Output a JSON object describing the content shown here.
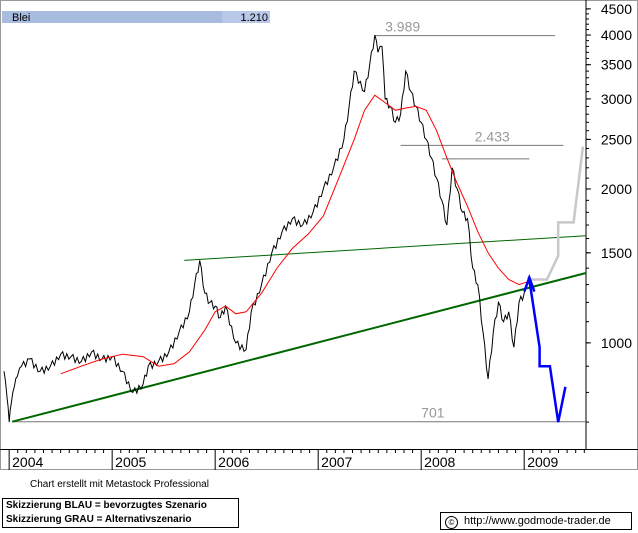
{
  "header": {
    "symbol": "Blei",
    "last_value": "1.210"
  },
  "footer": {
    "credit": "Chart erstellt mit Metastock Professional",
    "legend_blue": "Skizzierung BLAU = bevorzugtes Szenario",
    "legend_grey": "Skizzierung GRAU = Alternativszenario",
    "url": "http://www.godmode-trader.de",
    "copyright_symbol": "©"
  },
  "chart_data": {
    "type": "line",
    "title": "Blei",
    "y_scale": "log",
    "ylim": [
      620,
      4600
    ],
    "y_ticks": [
      1000,
      1500,
      2000,
      2500,
      3000,
      3500,
      4000,
      4500
    ],
    "y_tick_labels": [
      "1000",
      "1500",
      "2000",
      "2500",
      "3000",
      "3500",
      "4000",
      "4500"
    ],
    "x_ticks": [
      "2004",
      "2005",
      "2006",
      "2007",
      "2008",
      "2009"
    ],
    "xlim": [
      2003.95,
      2009.6
    ],
    "grid": false,
    "colors": {
      "price": "#000000",
      "moving_average": "#ff0000",
      "trendline": "#006600",
      "blue_scenario": "#0000ff",
      "grey_scenario": "#c8c8c8",
      "levels": "#808080"
    },
    "series": [
      {
        "x": [
          2003.95,
          2003.98,
          2004.0,
          2004.02,
          2004.05,
          2004.08,
          2004.12,
          2004.2,
          2004.3,
          2004.4,
          2004.5,
          2004.6,
          2004.7,
          2004.8,
          2004.9,
          2005.0,
          2005.1,
          2005.2,
          2005.3,
          2005.35,
          2005.45,
          2005.55,
          2005.65,
          2005.75,
          2005.8,
          2005.85,
          2005.9,
          2005.95,
          2006.0,
          2006.05,
          2006.1,
          2006.2,
          2006.3,
          2006.35,
          2006.45,
          2006.55,
          2006.65,
          2006.75,
          2006.85,
          2006.95,
          2007.05,
          2007.15,
          2007.25,
          2007.3,
          2007.35,
          2007.45,
          2007.5,
          2007.55,
          2007.58,
          2007.62,
          2007.65,
          2007.7,
          2007.75,
          2007.8,
          2007.85,
          2007.9,
          2007.95,
          2008.0,
          2008.05,
          2008.1,
          2008.15,
          2008.2,
          2008.25,
          2008.3,
          2008.35,
          2008.4,
          2008.45,
          2008.5,
          2008.55,
          2008.6,
          2008.65,
          2008.7,
          2008.75,
          2008.8,
          2008.85,
          2008.9,
          2008.95,
          2009.0,
          2009.03,
          2009.05
        ],
        "values": [
          880,
          780,
          700,
          760,
          820,
          860,
          900,
          930,
          880,
          900,
          950,
          940,
          920,
          960,
          930,
          940,
          880,
          800,
          830,
          900,
          920,
          960,
          1050,
          1150,
          1300,
          1450,
          1250,
          1200,
          1180,
          1120,
          1180,
          1000,
          970,
          1150,
          1300,
          1500,
          1650,
          1750,
          1700,
          1800,
          2000,
          2200,
          2500,
          2900,
          3400,
          3100,
          3500,
          4000,
          3700,
          3800,
          3000,
          2900,
          2700,
          2800,
          3400,
          3100,
          2900,
          2700,
          2500,
          2300,
          2100,
          1900,
          1700,
          2200,
          2000,
          1800,
          1750,
          1400,
          1300,
          1050,
          850,
          1050,
          1200,
          1100,
          1150,
          980,
          1200,
          1250,
          1300,
          1350
        ]
      },
      {
        "x": [
          2004.5,
          2004.7,
          2004.9,
          2005.1,
          2005.3,
          2005.45,
          2005.6,
          2005.75,
          2005.9,
          2006.0,
          2006.1,
          2006.2,
          2006.3,
          2006.45,
          2006.6,
          2006.75,
          2006.9,
          2007.05,
          2007.2,
          2007.35,
          2007.45,
          2007.55,
          2007.65,
          2007.75,
          2007.85,
          2007.95,
          2008.05,
          2008.15,
          2008.25,
          2008.35,
          2008.45,
          2008.55,
          2008.65,
          2008.75,
          2008.85,
          2008.95,
          2009.05
        ],
        "values": [
          870,
          900,
          930,
          950,
          940,
          900,
          910,
          960,
          1060,
          1150,
          1180,
          1140,
          1150,
          1250,
          1400,
          1530,
          1630,
          1770,
          2100,
          2500,
          2850,
          3050,
          2950,
          2850,
          2880,
          2900,
          2850,
          2600,
          2300,
          2050,
          1850,
          1650,
          1500,
          1400,
          1330,
          1300,
          1320
        ]
      }
    ],
    "price_levels": [
      {
        "label": "3.989",
        "value": 3989
      },
      {
        "label": "2.433",
        "value": 2433
      },
      {
        "label": "701",
        "value": 701
      }
    ],
    "trendlines": [
      {
        "x": [
          2004.03,
          2009.6
        ],
        "values": [
          701,
          1370
        ]
      },
      {
        "x": [
          2005.7,
          2009.6
        ],
        "values": [
          1450,
          1620
        ]
      }
    ],
    "scenario_blue": {
      "x": [
        2009.05,
        2009.15,
        2009.15,
        2009.25,
        2009.33,
        2009.4
      ],
      "values": [
        1330,
        980,
        900,
        900,
        700,
        820
      ]
    },
    "scenario_grey": {
      "x": [
        2009.05,
        2009.22,
        2009.33,
        2009.33,
        2009.48,
        2009.57
      ],
      "values": [
        1330,
        1330,
        1480,
        1720,
        1720,
        2420
      ]
    }
  }
}
